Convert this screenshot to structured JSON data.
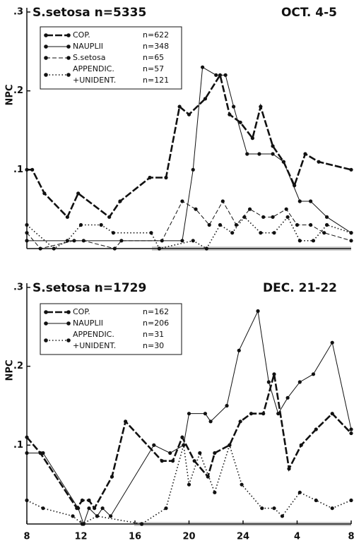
{
  "chart_data": [
    {
      "type": "line",
      "title": "S.setosa n=5335",
      "subtitle": "OCT. 4-5",
      "ylabel": "NPC",
      "xlim": [
        8,
        32
      ],
      "ylim": [
        0,
        0.3
      ],
      "yticks": [
        {
          "value": 0.1,
          "label": ".1"
        },
        {
          "value": 0.2,
          "label": ".2"
        },
        {
          "value": 0.3,
          "label": ".3"
        }
      ],
      "series": [
        {
          "name_lines": [
            "COP."
          ],
          "n_lines": [
            "n=622"
          ],
          "color": "#111",
          "dash": "10 3",
          "width": 2.6,
          "x": [
            8,
            8.4,
            9.3,
            11,
            11.8,
            14.1,
            14.9,
            17.1,
            18.3,
            19.3,
            20,
            21.2,
            22.3,
            23,
            23.8,
            24.7,
            25.3,
            26.2,
            27,
            27.8,
            28.6,
            29.6,
            32
          ],
          "values": [
            0.1,
            0.1,
            0.07,
            0.04,
            0.07,
            0.04,
            0.06,
            0.09,
            0.09,
            0.18,
            0.17,
            0.19,
            0.22,
            0.17,
            0.16,
            0.14,
            0.18,
            0.13,
            0.11,
            0.08,
            0.12,
            0.11,
            0.1
          ]
        },
        {
          "name_lines": [
            "NAUPLII"
          ],
          "n_lines": [
            "n=348"
          ],
          "color": "#111",
          "dash": "",
          "width": 1,
          "x": [
            8,
            19.5,
            20.3,
            21,
            22,
            22.7,
            23.3,
            24.3,
            25.2,
            26.2,
            27,
            28.2,
            29,
            30.2,
            32
          ],
          "values": [
            0.01,
            0.01,
            0.1,
            0.23,
            0.22,
            0.22,
            0.18,
            0.12,
            0.12,
            0.12,
            0.11,
            0.06,
            0.06,
            0.04,
            0.02
          ]
        },
        {
          "name_lines": [
            "S.setosa"
          ],
          "n_lines": [
            "n=65"
          ],
          "color": "#111",
          "dash": "6 3",
          "width": 1,
          "x": [
            8,
            9,
            11.5,
            12.2,
            14.5,
            15,
            18,
            19.5,
            20.5,
            21.5,
            22.5,
            23.5,
            24.5,
            25.5,
            26.2,
            27.2,
            28,
            29,
            30,
            32
          ],
          "values": [
            0.02,
            0.0,
            0.01,
            0.01,
            0.0,
            0.01,
            0.01,
            0.06,
            0.05,
            0.03,
            0.06,
            0.03,
            0.05,
            0.04,
            0.04,
            0.05,
            0.03,
            0.03,
            0.02,
            0.01
          ]
        },
        {
          "name_lines": [
            "APPENDIC.",
            "+UNIDENT."
          ],
          "n_lines": [
            "n=57",
            "n=121"
          ],
          "color": "#111",
          "dash": "1.5 3",
          "width": 1.6,
          "x": [
            8,
            10,
            11,
            12,
            13.5,
            14.4,
            17.2,
            17.8,
            20.3,
            21.3,
            22.3,
            23.2,
            24.1,
            25.3,
            26.3,
            27.3,
            28.2,
            29.2,
            30.2,
            32
          ],
          "values": [
            0.03,
            0.0,
            0.01,
            0.03,
            0.03,
            0.02,
            0.02,
            0.0,
            0.01,
            0.0,
            0.03,
            0.02,
            0.04,
            0.02,
            0.02,
            0.04,
            0.01,
            0.01,
            0.03,
            0.02
          ]
        }
      ]
    },
    {
      "type": "line",
      "title": "S.setosa n=1729",
      "subtitle": "DEC. 21-22",
      "ylabel": "NPC",
      "xlim": [
        8,
        32
      ],
      "ylim": [
        0,
        0.3
      ],
      "xticks": [
        8,
        12,
        16,
        20,
        24,
        {
          "value": 28,
          "label": "4"
        },
        {
          "value": 32,
          "label": "8"
        }
      ],
      "yticks": [
        {
          "value": 0.1,
          "label": ".1"
        },
        {
          "value": 0.2,
          "label": ".2"
        },
        {
          "value": 0.3,
          "label": ".3"
        }
      ],
      "series": [
        {
          "name_lines": [
            "COP."
          ],
          "n_lines": [
            "n=162"
          ],
          "color": "#111",
          "dash": "10 3",
          "width": 2.6,
          "x": [
            8,
            9,
            11.7,
            12.1,
            12.6,
            13,
            14.3,
            15.3,
            18,
            18.8,
            19.5,
            20.4,
            21.4,
            21.9,
            23,
            23.8,
            24.6,
            25.5,
            26.3,
            27.4,
            28.3,
            29.4,
            30.6,
            32
          ],
          "values": [
            0.11,
            0.09,
            0.02,
            0.03,
            0.03,
            0.02,
            0.06,
            0.13,
            0.08,
            0.08,
            0.11,
            0.08,
            0.06,
            0.09,
            0.1,
            0.13,
            0.14,
            0.14,
            0.19,
            0.07,
            0.1,
            0.12,
            0.14,
            0.115
          ]
        },
        {
          "name_lines": [
            "NAUPLII"
          ],
          "n_lines": [
            "n=206"
          ],
          "color": "#111",
          "dash": "",
          "width": 1,
          "x": [
            8,
            9.2,
            11.8,
            12.2,
            12.6,
            13.2,
            13.6,
            14.2,
            17.4,
            18.6,
            19.6,
            20,
            21.2,
            21.6,
            22.8,
            23.7,
            25.1,
            25.9,
            26.6,
            27.3,
            28.2,
            29.2,
            30.6,
            32
          ],
          "values": [
            0.09,
            0.09,
            0.02,
            0.0,
            0.02,
            0.01,
            0.02,
            0.01,
            0.1,
            0.09,
            0.1,
            0.14,
            0.14,
            0.13,
            0.15,
            0.22,
            0.27,
            0.18,
            0.14,
            0.16,
            0.18,
            0.19,
            0.23,
            0.12
          ]
        },
        {
          "name_lines": [
            "APPENDIC.",
            "+UNIDENT."
          ],
          "n_lines": [
            "n=31",
            "n=30"
          ],
          "color": "#111",
          "dash": "1.5 3",
          "width": 1.6,
          "x": [
            8,
            9.2,
            11.4,
            12.1,
            13.2,
            16.5,
            18.3,
            19.6,
            20,
            20.8,
            21.9,
            23,
            23.9,
            25.4,
            26.3,
            26.9,
            28.2,
            29.4,
            30.6,
            32
          ],
          "values": [
            0.03,
            0.02,
            0.01,
            0.0,
            0.01,
            0.0,
            0.02,
            0.1,
            0.05,
            0.09,
            0.04,
            0.1,
            0.05,
            0.02,
            0.02,
            0.01,
            0.04,
            0.03,
            0.02,
            0.03
          ]
        }
      ]
    }
  ]
}
